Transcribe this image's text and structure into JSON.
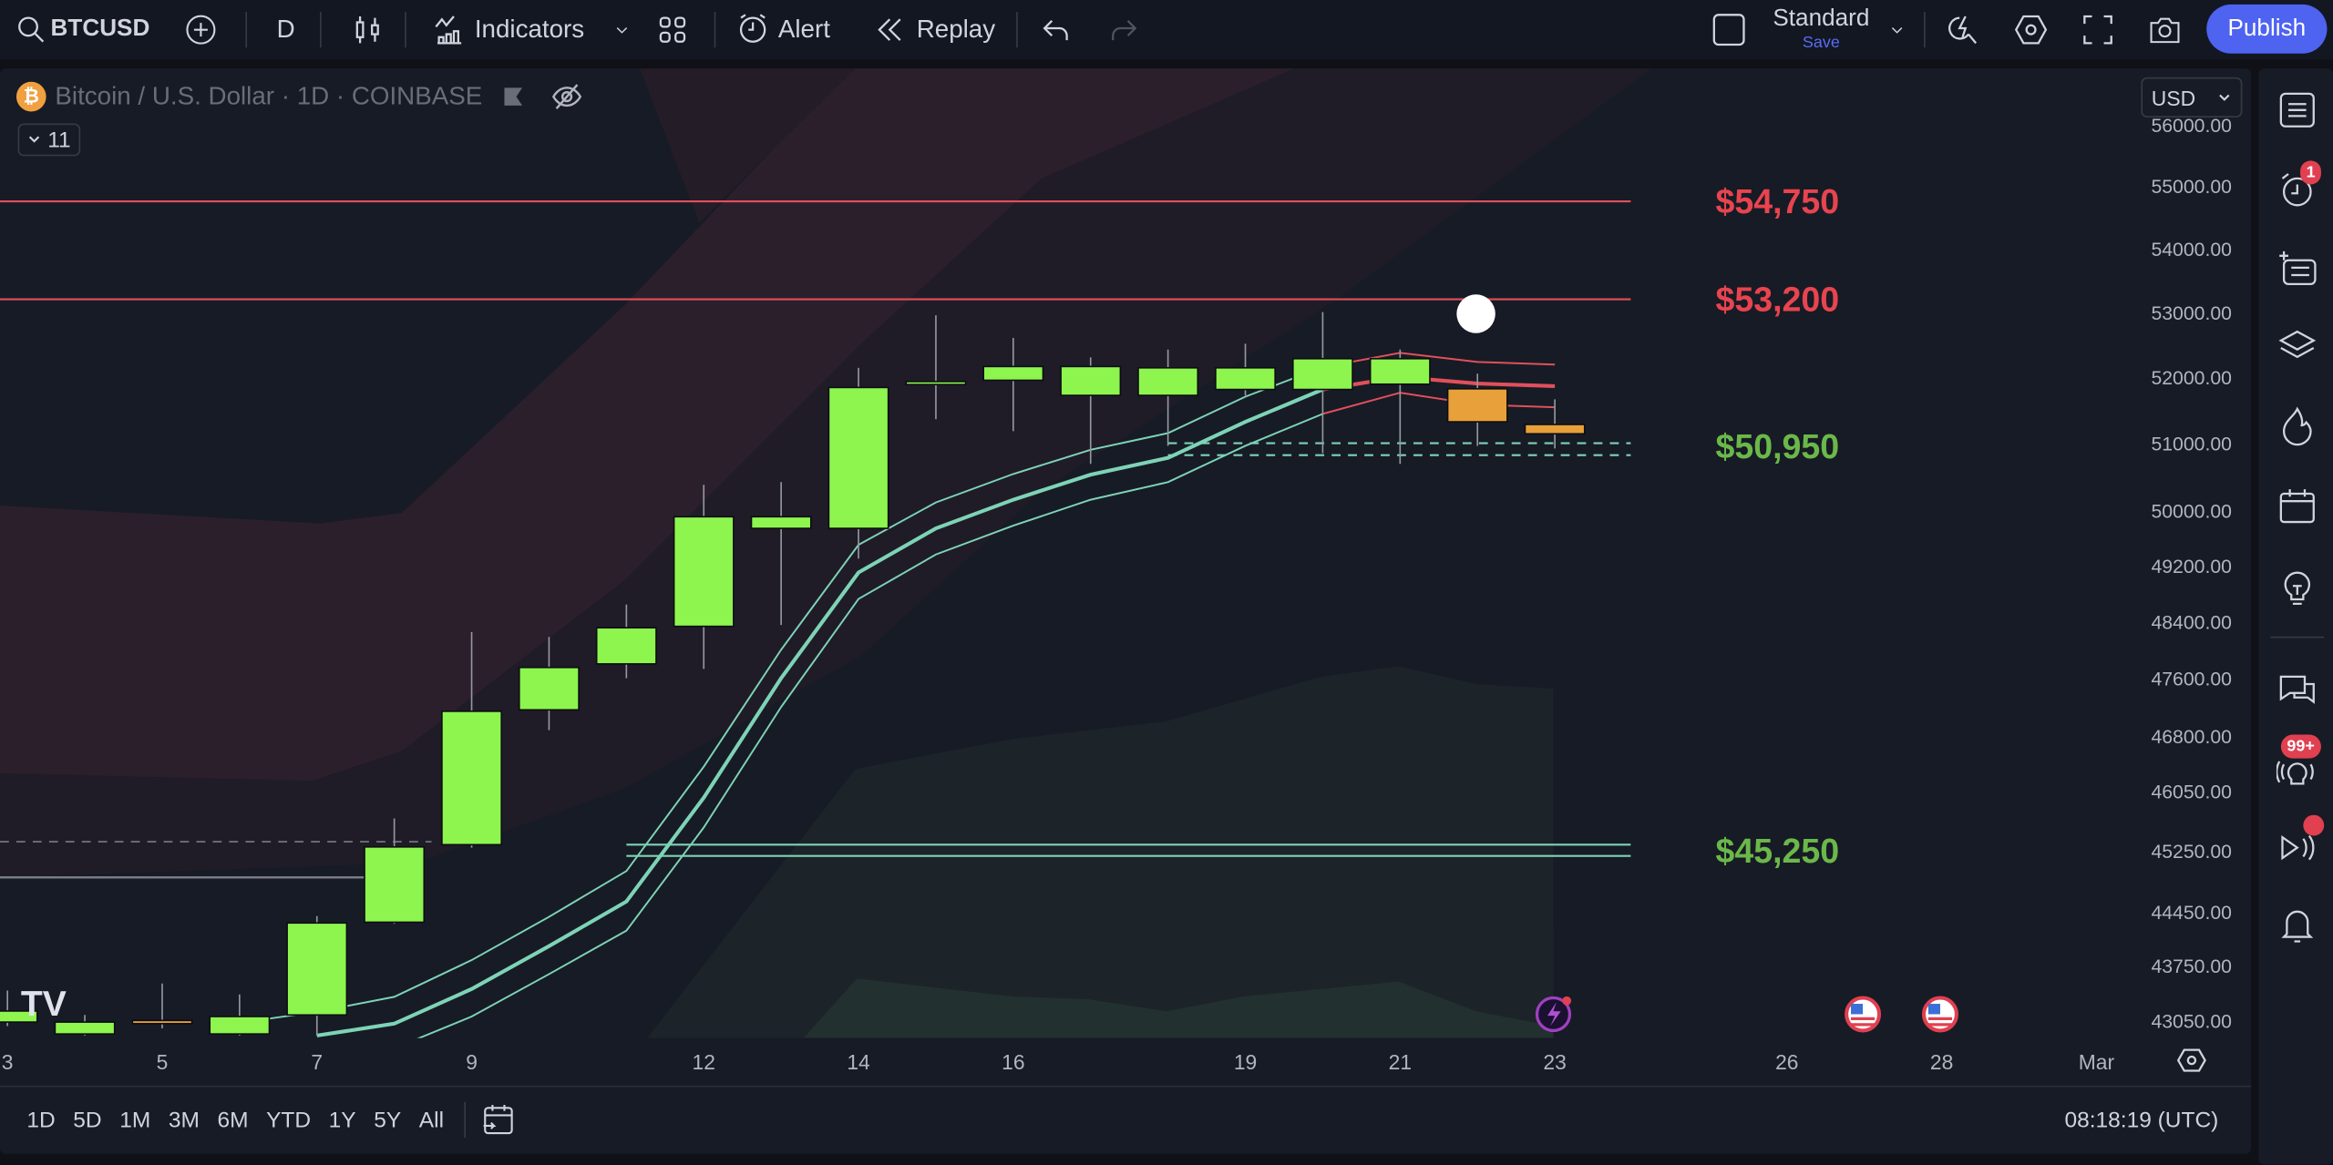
{
  "toolbar": {
    "symbol": "BTCUSD",
    "interval": "D",
    "indicators_label": "Indicators",
    "alert_label": "Alert",
    "replay_label": "Replay",
    "layout_name": "Standard",
    "save_label": "Save",
    "publish_label": "Publish"
  },
  "legend": {
    "title": "Bitcoin / U.S. Dollar · 1D · COINBASE",
    "indicator_count": "11",
    "currency": "USD"
  },
  "sidebar": {
    "alerts_badge": "1",
    "ideas_badge": "99+"
  },
  "bottom_bar": {
    "timeframes": [
      "1D",
      "5D",
      "1M",
      "3M",
      "6M",
      "YTD",
      "1Y",
      "5Y",
      "All"
    ],
    "clock": "08:18:19 (UTC)"
  },
  "colors": {
    "up": "#8ef54f",
    "down": "#e8a03a",
    "resistance": "#e0505c",
    "support": "#7ed3b6",
    "accent": "#4e63f0"
  },
  "chart_data": {
    "type": "candlestick",
    "y_scale": "log",
    "price_ticks": [
      56000,
      55000,
      54000,
      53000,
      52000,
      51000,
      50000,
      49200,
      48400,
      47600,
      46800,
      46050,
      45250,
      44450,
      43750,
      43050
    ],
    "date_ticks": [
      {
        "label": "3",
        "date": "Feb 3"
      },
      {
        "label": "5",
        "date": "Feb 5"
      },
      {
        "label": "7",
        "date": "Feb 7"
      },
      {
        "label": "9",
        "date": "Feb 9"
      },
      {
        "label": "12",
        "date": "Feb 12"
      },
      {
        "label": "14",
        "date": "Feb 14"
      },
      {
        "label": "16",
        "date": "Feb 16"
      },
      {
        "label": "19",
        "date": "Feb 19"
      },
      {
        "label": "21",
        "date": "Feb 21"
      },
      {
        "label": "23",
        "date": "Feb 23"
      },
      {
        "label": "26",
        "date": "Feb 26"
      },
      {
        "label": "28",
        "date": "Feb 28"
      },
      {
        "label": "Mar",
        "date": "Mar 1"
      }
    ],
    "candles": [
      {
        "date": "Feb 3",
        "o": 43030,
        "h": 43430,
        "l": 42980,
        "c": 43170
      },
      {
        "date": "Feb 4",
        "o": 42880,
        "h": 43120,
        "l": 42860,
        "c": 43030
      },
      {
        "date": "Feb 5",
        "o": 43050,
        "h": 43520,
        "l": 42950,
        "c": 43010
      },
      {
        "date": "Feb 6",
        "o": 42880,
        "h": 43380,
        "l": 42860,
        "c": 43100
      },
      {
        "date": "Feb 7",
        "o": 43120,
        "h": 44390,
        "l": 42860,
        "c": 44300
      },
      {
        "date": "Feb 8",
        "o": 44310,
        "h": 45680,
        "l": 44290,
        "c": 45300
      },
      {
        "date": "Feb 9",
        "o": 45330,
        "h": 48250,
        "l": 45290,
        "c": 47140
      },
      {
        "date": "Feb 10",
        "o": 47160,
        "h": 48180,
        "l": 46880,
        "c": 47750
      },
      {
        "date": "Feb 11",
        "o": 47800,
        "h": 48640,
        "l": 47600,
        "c": 48310
      },
      {
        "date": "Feb 12",
        "o": 48330,
        "h": 50380,
        "l": 47730,
        "c": 49910
      },
      {
        "date": "Feb 13",
        "o": 49740,
        "h": 50420,
        "l": 48350,
        "c": 49910
      },
      {
        "date": "Feb 14",
        "o": 49740,
        "h": 52140,
        "l": 49300,
        "c": 51840
      },
      {
        "date": "Feb 15",
        "o": 51890,
        "h": 52950,
        "l": 51360,
        "c": 51930
      },
      {
        "date": "Feb 16",
        "o": 51950,
        "h": 52600,
        "l": 51180,
        "c": 52160
      },
      {
        "date": "Feb 17",
        "o": 51720,
        "h": 52300,
        "l": 50690,
        "c": 52160
      },
      {
        "date": "Feb 18",
        "o": 51720,
        "h": 52420,
        "l": 50960,
        "c": 52140
      },
      {
        "date": "Feb 19",
        "o": 51810,
        "h": 52510,
        "l": 51720,
        "c": 52140
      },
      {
        "date": "Feb 20",
        "o": 51810,
        "h": 53000,
        "l": 50850,
        "c": 52280
      },
      {
        "date": "Feb 21",
        "o": 51890,
        "h": 52420,
        "l": 50690,
        "c": 52280
      },
      {
        "date": "Feb 22",
        "o": 51820,
        "h": 52050,
        "l": 50960,
        "c": 51320
      },
      {
        "date": "Feb 23",
        "o": 51280,
        "h": 51660,
        "l": 50920,
        "c": 51140
      }
    ],
    "indicator_lines": [
      {
        "color": "#7ed3b6",
        "width": 2.5,
        "points": [
          [
            "Feb 7",
            42860
          ],
          [
            "Feb 8",
            43010
          ],
          [
            "Feb 9",
            43450
          ],
          [
            "Feb 10",
            44000
          ],
          [
            "Feb 11",
            44580
          ],
          [
            "Feb 12",
            45960
          ],
          [
            "Feb 13",
            47600
          ],
          [
            "Feb 14",
            49100
          ],
          [
            "Feb 15",
            49740
          ],
          [
            "Feb 16",
            50160
          ],
          [
            "Feb 17",
            50530
          ],
          [
            "Feb 18",
            50780
          ],
          [
            "Feb 19",
            51320
          ],
          [
            "Feb 20",
            51810
          ]
        ]
      },
      {
        "color": "#7ed3b6",
        "width": 1.2,
        "points": [
          [
            "Feb 6",
            43020
          ],
          [
            "Feb 7",
            43160
          ],
          [
            "Feb 8",
            43350
          ],
          [
            "Feb 9",
            43820
          ],
          [
            "Feb 10",
            44380
          ],
          [
            "Feb 11",
            44980
          ],
          [
            "Feb 12",
            46380
          ],
          [
            "Feb 13",
            48000
          ],
          [
            "Feb 14",
            49500
          ],
          [
            "Feb 15",
            50120
          ],
          [
            "Feb 16",
            50540
          ],
          [
            "Feb 17",
            50900
          ],
          [
            "Feb 18",
            51150
          ],
          [
            "Feb 19",
            51700
          ],
          [
            "Feb 20",
            52150
          ]
        ]
      },
      {
        "color": "#7ed3b6",
        "width": 1.2,
        "points": [
          [
            "Feb 8",
            42700
          ],
          [
            "Feb 9",
            43100
          ],
          [
            "Feb 10",
            43640
          ],
          [
            "Feb 11",
            44200
          ],
          [
            "Feb 12",
            45560
          ],
          [
            "Feb 13",
            47200
          ],
          [
            "Feb 14",
            48720
          ],
          [
            "Feb 15",
            49360
          ],
          [
            "Feb 16",
            49780
          ],
          [
            "Feb 17",
            50160
          ],
          [
            "Feb 18",
            50420
          ],
          [
            "Feb 19",
            50960
          ],
          [
            "Feb 20",
            51440
          ]
        ]
      },
      {
        "color": "#e0505c",
        "width": 2.5,
        "points": [
          [
            "Feb 20",
            51810
          ],
          [
            "Feb 21",
            52000
          ],
          [
            "Feb 22",
            51900
          ],
          [
            "Feb 23",
            51860
          ]
        ]
      },
      {
        "color": "#e0505c",
        "width": 1.2,
        "points": [
          [
            "Feb 20",
            52150
          ],
          [
            "Feb 21",
            52370
          ],
          [
            "Feb 22",
            52230
          ],
          [
            "Feb 23",
            52190
          ]
        ]
      },
      {
        "color": "#e0505c",
        "width": 1.2,
        "points": [
          [
            "Feb 20",
            51440
          ],
          [
            "Feb 21",
            51760
          ],
          [
            "Feb 22",
            51580
          ],
          [
            "Feb 23",
            51540
          ]
        ]
      }
    ],
    "levels": [
      {
        "label": "$54,750",
        "price": 54750,
        "color": "#e0505c",
        "label_color": "#e8444f",
        "lines": [
          54750
        ],
        "dashed": false
      },
      {
        "label": "$53,200",
        "price": 53200,
        "color": "#e0505c",
        "label_color": "#e8444f",
        "lines": [
          53200
        ],
        "dashed": false
      },
      {
        "label": "$50,950",
        "price": 50950,
        "color": "#7ed3b6",
        "label_color": "#6bb84a",
        "lines": [
          51000,
          50820
        ],
        "dashed": true,
        "from": "Feb 18"
      },
      {
        "label": "$45,250",
        "price": 45250,
        "color": "#7ed3b6",
        "label_color": "#6bb84a",
        "lines": [
          45330,
          45180
        ],
        "dashed": false,
        "from": "Feb 11"
      }
    ]
  }
}
